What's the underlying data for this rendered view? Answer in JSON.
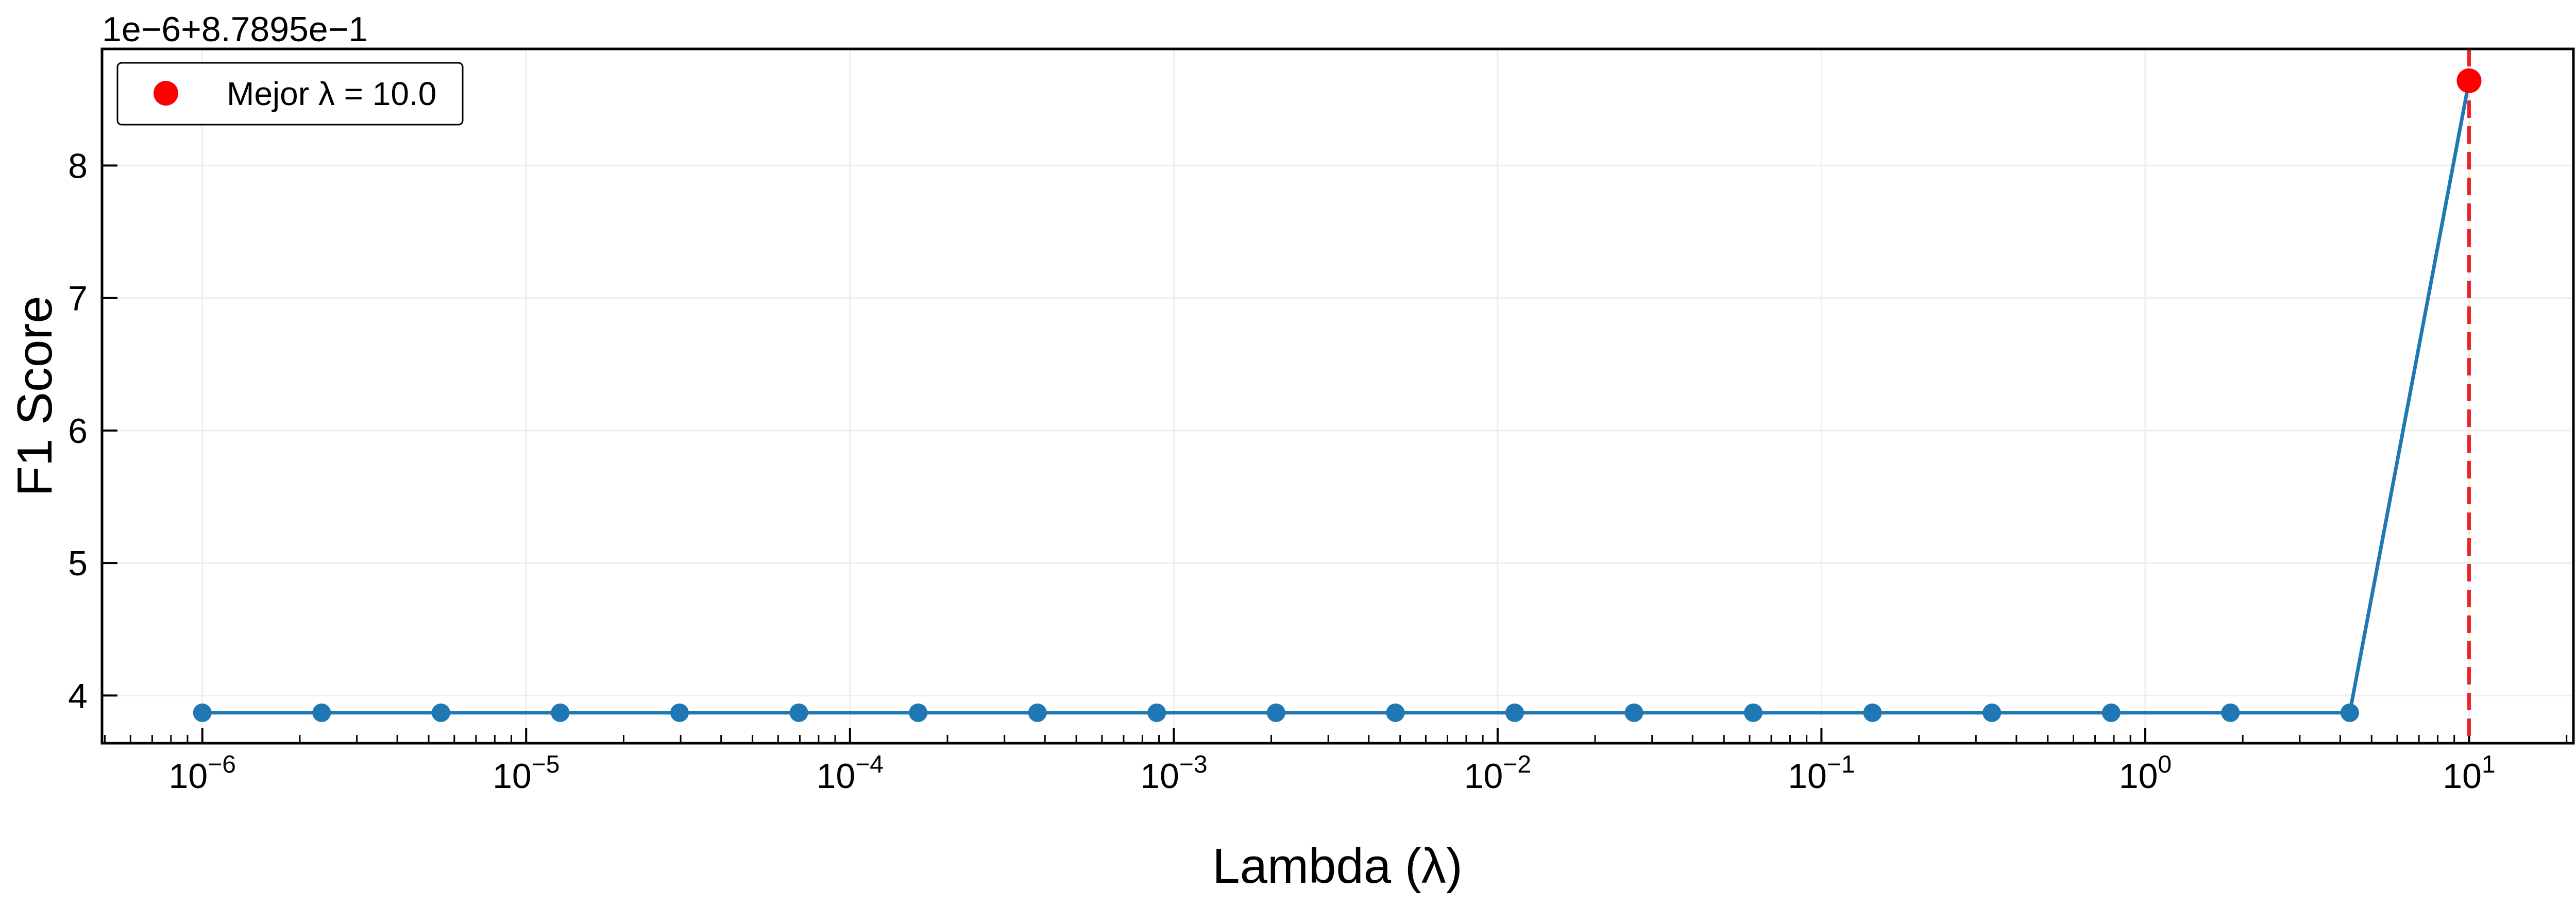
{
  "chart_data": {
    "type": "line",
    "xlabel": "Lambda (λ)",
    "ylabel": "F1 Score",
    "x_scale": "log",
    "offset_text": "1e−6+8.7895e−1",
    "xlim": [
      4.9e-07,
      21
    ],
    "ylim": [
      3.64,
      8.88
    ],
    "grid": true,
    "x_ticks": [
      {
        "base": "10",
        "exp": "−6",
        "value": 1e-06
      },
      {
        "base": "10",
        "exp": "−5",
        "value": 1e-05
      },
      {
        "base": "10",
        "exp": "−4",
        "value": 0.0001
      },
      {
        "base": "10",
        "exp": "−3",
        "value": 0.001
      },
      {
        "base": "10",
        "exp": "−2",
        "value": 0.01
      },
      {
        "base": "10",
        "exp": "−1",
        "value": 0.1
      },
      {
        "base": "10",
        "exp": "0",
        "value": 1
      },
      {
        "base": "10",
        "exp": "1",
        "value": 10
      }
    ],
    "y_ticks": [
      {
        "label": "4",
        "value": 4
      },
      {
        "label": "5",
        "value": 5
      },
      {
        "label": "6",
        "value": 6
      },
      {
        "label": "7",
        "value": 7
      },
      {
        "label": "8",
        "value": 8
      }
    ],
    "series": [
      {
        "color": "#1f77b4",
        "marker": "circle",
        "x": [
          1e-06,
          2.336e-06,
          5.456e-06,
          1.274e-05,
          2.976e-05,
          6.952e-05,
          0.0001624,
          0.0003793,
          0.0008859,
          0.002069,
          0.004833,
          0.01129,
          0.02637,
          0.06158,
          0.1438,
          0.336,
          0.7848,
          1.833,
          4.281,
          10.0
        ],
        "y": [
          3.87,
          3.87,
          3.87,
          3.87,
          3.87,
          3.87,
          3.87,
          3.87,
          3.87,
          3.87,
          3.87,
          3.87,
          3.87,
          3.87,
          3.87,
          3.87,
          3.87,
          3.87,
          3.87,
          8.64
        ]
      }
    ],
    "best_point": {
      "x": 10.0,
      "y": 8.64,
      "color": "#ff0000"
    },
    "best_line": {
      "x": 10.0,
      "color": "#e8262a",
      "style": "dashed"
    },
    "legend": {
      "position": "top-left",
      "entries": [
        {
          "label": "Mejor λ = 10.0",
          "color": "#ff0000",
          "marker": "circle"
        }
      ]
    }
  }
}
